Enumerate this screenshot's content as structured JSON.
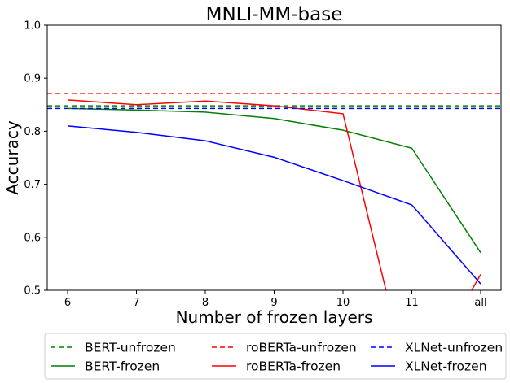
{
  "chart_data": {
    "type": "line",
    "title": "MNLI-MM-base",
    "xlabel": "Number of frozen layers",
    "ylabel": "Accuracy",
    "categories": [
      "6",
      "7",
      "8",
      "9",
      "10",
      "11",
      "all"
    ],
    "ylim": [
      0.5,
      1.0
    ],
    "yticks": [
      "0.5",
      "0.6",
      "0.7",
      "0.8",
      "0.9",
      "1.0"
    ],
    "grid": false,
    "legend_position": "bottom",
    "series": [
      {
        "name": "BERT-unfrozen",
        "color": "#008000",
        "style": "dashed",
        "values": [
          0.848,
          0.848,
          0.848,
          0.848,
          0.848,
          0.848,
          0.848
        ]
      },
      {
        "name": "BERT-frozen",
        "color": "#008000",
        "style": "solid",
        "values": [
          0.843,
          0.84,
          0.836,
          0.824,
          0.802,
          0.768,
          0.571
        ]
      },
      {
        "name": "roBERTa-unfrozen",
        "color": "#ff0000",
        "style": "dashed",
        "values": [
          0.871,
          0.871,
          0.871,
          0.871,
          0.871,
          0.871,
          0.871
        ]
      },
      {
        "name": "roBERTa-frozen",
        "color": "#ff0000",
        "style": "solid",
        "values": [
          0.859,
          0.85,
          0.857,
          0.848,
          0.833,
          0.3,
          0.53
        ]
      },
      {
        "name": "XLNet-unfrozen",
        "color": "#0000ff",
        "style": "dashed",
        "values": [
          0.843,
          0.843,
          0.843,
          0.843,
          0.843,
          0.843,
          0.843
        ]
      },
      {
        "name": "XLNet-frozen",
        "color": "#0000ff",
        "style": "solid",
        "values": [
          0.81,
          0.798,
          0.782,
          0.751,
          0.707,
          0.661,
          0.512
        ]
      }
    ]
  }
}
